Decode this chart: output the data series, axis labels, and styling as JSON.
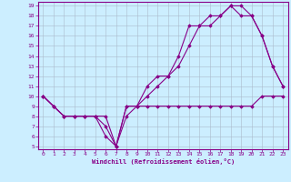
{
  "title": "",
  "xlabel": "Windchill (Refroidissement éolien,°C)",
  "bg_color": "#cceeff",
  "line_color": "#880088",
  "grid_color": "#aabbcc",
  "xmin": 0,
  "xmax": 23,
  "ymin": 5,
  "ymax": 19,
  "xticks": [
    0,
    1,
    2,
    3,
    4,
    5,
    6,
    7,
    8,
    9,
    10,
    11,
    12,
    13,
    14,
    15,
    16,
    17,
    18,
    19,
    20,
    21,
    22,
    23
  ],
  "yticks": [
    5,
    6,
    7,
    8,
    9,
    10,
    11,
    12,
    13,
    14,
    15,
    16,
    17,
    18,
    19
  ],
  "line1_x": [
    0,
    1,
    2,
    3,
    4,
    5,
    6,
    7,
    8,
    9,
    10,
    11,
    12,
    13,
    14,
    15,
    16,
    17,
    18,
    19,
    20,
    21,
    22,
    23
  ],
  "line1_y": [
    10,
    9,
    8,
    8,
    8,
    8,
    6,
    5,
    8,
    9,
    9,
    9,
    9,
    9,
    9,
    9,
    9,
    9,
    9,
    9,
    9,
    10,
    10,
    10
  ],
  "line2_x": [
    0,
    1,
    2,
    3,
    4,
    5,
    6,
    7,
    8,
    9,
    10,
    11,
    12,
    13,
    14,
    15,
    16,
    17,
    18,
    19,
    20,
    21,
    22,
    23
  ],
  "line2_y": [
    10,
    9,
    8,
    8,
    8,
    8,
    7,
    5,
    9,
    9,
    10,
    11,
    12,
    13,
    15,
    17,
    17,
    18,
    19,
    19,
    18,
    16,
    13,
    11
  ],
  "line3_x": [
    0,
    1,
    2,
    3,
    4,
    5,
    6,
    7,
    8,
    9,
    10,
    11,
    12,
    13,
    14,
    15,
    16,
    17,
    18,
    19,
    20,
    21,
    22,
    23
  ],
  "line3_y": [
    10,
    9,
    8,
    8,
    8,
    8,
    8,
    5,
    9,
    9,
    11,
    12,
    12,
    14,
    17,
    17,
    18,
    18,
    19,
    18,
    18,
    16,
    13,
    11
  ]
}
